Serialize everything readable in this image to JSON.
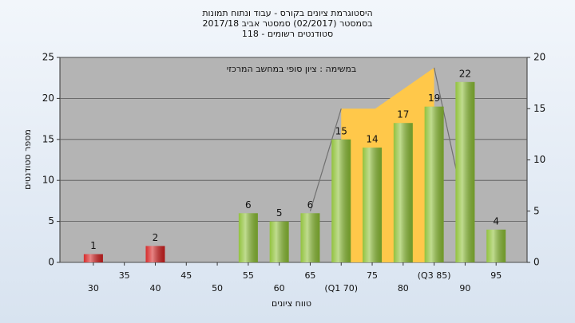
{
  "chart_data": {
    "type": "bar",
    "title": "היסטוגרמת ציונים בקורס - עבוד ונתוח תמונות",
    "subtitle": "בסמסטר  (02/2017)  סמסטר אביב 2017/18",
    "subtitle2": "סטודנטים רשומים - 118",
    "annotation": "במשימה : ציון סופי במחשב המרכזי",
    "xlabel": "טווח ציונים",
    "ylabel": "מספר סטודנטים",
    "x": [
      30,
      35,
      40,
      45,
      50,
      55,
      60,
      65,
      70,
      75,
      80,
      85,
      90,
      95
    ],
    "values": [
      1,
      0,
      2,
      0,
      0,
      6,
      5,
      6,
      15,
      14,
      17,
      19,
      22,
      4
    ],
    "colors": [
      "#d42020",
      "#d42020",
      "#d42020",
      "#d42020",
      "#d42020",
      "#8cbf34",
      "#8cbf34",
      "#8cbf34",
      "#8cbf34",
      "#8cbf34",
      "#8cbf34",
      "#8cbf34",
      "#8cbf34",
      "#8cbf34"
    ],
    "xlim": [
      24.6,
      100
    ],
    "xticks": [
      30,
      35,
      40,
      45,
      50,
      55,
      60,
      65,
      {
        "value": 70,
        "label": "(Q1 70)"
      },
      75,
      80,
      {
        "value": 85,
        "label": "(Q3 85)"
      },
      90,
      95
    ],
    "ylim": [
      0,
      25
    ],
    "yticks": [
      0,
      5,
      10,
      15,
      20,
      25
    ],
    "y2lim": [
      0,
      20
    ],
    "y2ticks": [
      0,
      5,
      10,
      15,
      20
    ],
    "grid": true,
    "overlays": [
      {
        "type": "area",
        "axis": "y2",
        "color": "#ffc84a",
        "x": [
          70,
          75.5,
          85
        ],
        "values": [
          15,
          15,
          19
        ]
      },
      {
        "type": "line",
        "axis": "y2",
        "color": "#707070",
        "x": [
          65,
          70
        ],
        "values": [
          5,
          15
        ]
      },
      {
        "type": "line",
        "axis": "y2",
        "color": "#707070",
        "x": [
          85,
          90
        ],
        "values": [
          19,
          5
        ]
      }
    ]
  }
}
